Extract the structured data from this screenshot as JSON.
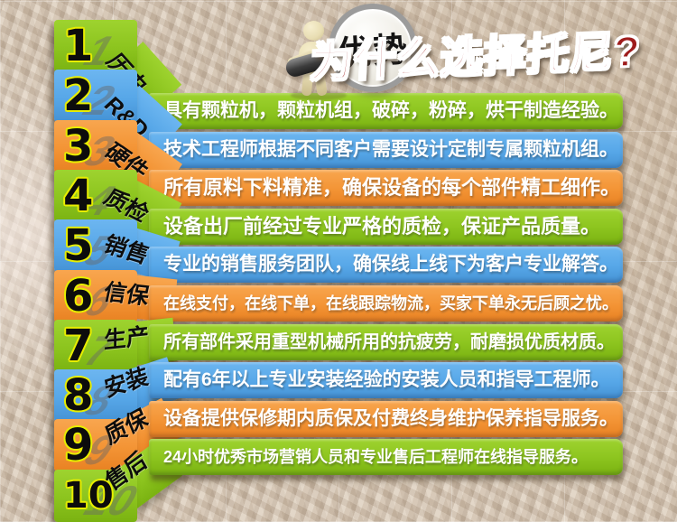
{
  "title": {
    "text": "为什么选择托尼?",
    "color": "#9e1c1c"
  },
  "badge": {
    "label": "优势",
    "mascot": "figure-with-magnifier"
  },
  "colors": {
    "green": "#8cc41e",
    "blue": "#57a7e8",
    "orange": "#f39435",
    "number_outline": "#e8ee00",
    "bar_text": "#ffffff"
  },
  "rows": [
    {
      "number": "1",
      "tag": "历史",
      "color": "green",
      "text": "具有颗粒机，颗粒机组，破碎，粉碎，烘干制造经验。"
    },
    {
      "number": "2",
      "tag": "R&D",
      "color": "blue",
      "text": "技术工程师根据不同客户需要设计定制专属颗粒机组。"
    },
    {
      "number": "3",
      "tag": "硬件",
      "color": "orange",
      "text": "所有原料下料精准，确保设备的每个部件精工细作。"
    },
    {
      "number": "4",
      "tag": "质检",
      "color": "green",
      "text": "设备出厂前经过专业严格的质检，保证产品质量。"
    },
    {
      "number": "5",
      "tag": "销售",
      "color": "blue",
      "text": "专业的销售服务团队，确保线上线下为客户专业解答。"
    },
    {
      "number": "6",
      "tag": "信保",
      "color": "orange",
      "text": "在线支付，在线下单，在线跟踪物流，买家下单永无后顾之忧。"
    },
    {
      "number": "7",
      "tag": "生产",
      "color": "green",
      "text": "所有部件采用重型机械所用的抗疲劳，耐磨损优质材质。"
    },
    {
      "number": "8",
      "tag": "安装",
      "color": "blue",
      "text": "配有6年以上专业安装经验的安装人员和指导工程师。"
    },
    {
      "number": "9",
      "tag": "质保",
      "color": "orange",
      "text": "设备提供保修期内质保及付费终身维护保养指导服务。"
    },
    {
      "number": "10",
      "tag": "售后",
      "color": "green",
      "text": "24小时优秀市场营销人员和专业售后工程师在线指导服务。"
    }
  ]
}
